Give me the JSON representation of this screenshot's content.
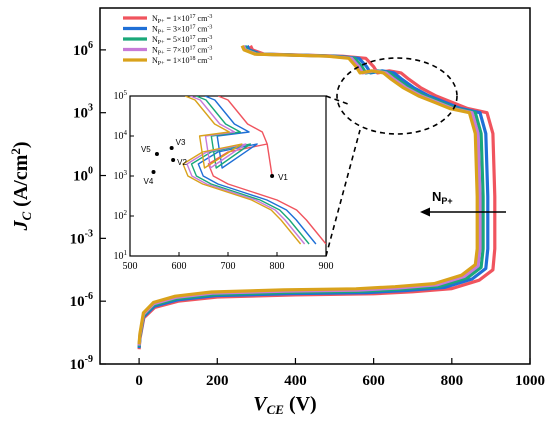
{
  "chart_data": {
    "type": "line",
    "xlabel": "V_CE (V)",
    "ylabel": "J_C (A/cm2)",
    "xlim": [
      -100,
      1000
    ],
    "ylim_log10": [
      -9,
      8
    ],
    "x_ticks": [
      "0",
      "200",
      "400",
      "600",
      "800",
      "1000"
    ],
    "y_ticks": [
      {
        "base": "10",
        "exp": "6",
        "v": 6
      },
      {
        "base": "10",
        "exp": "3",
        "v": 3
      },
      {
        "base": "10",
        "exp": "0",
        "v": 0
      },
      {
        "base": "10",
        "exp": "-3",
        "v": -3
      },
      {
        "base": "10",
        "exp": "-6",
        "v": -6
      },
      {
        "base": "10",
        "exp": "-9",
        "v": -9
      }
    ],
    "axis_label_x": {
      "main": "V",
      "sub": "CE",
      "unit": " (V)"
    },
    "axis_label_y": {
      "main": "J",
      "sub": "C",
      "unit": " (A/cm",
      "sup": "2",
      "close": ")"
    },
    "legend_placement": "top-left",
    "series": [
      {
        "name": "N_P+ = 1×10^17 cm^-3",
        "legend_label": {
          "a": "N",
          "b": "P+",
          "c": " = 1×10",
          "d": "17",
          "e": " cm",
          "f": "-3"
        },
        "color": "#f0545e",
        "dx": 0
      },
      {
        "name": "N_P+ = 3×10^17 cm^-3",
        "legend_label": {
          "a": "N",
          "b": "P+",
          "c": " = 3×10",
          "d": "17",
          "e": " cm",
          "f": "-3"
        },
        "color": "#1f6fd6",
        "dx": -18
      },
      {
        "name": "N_P+ = 5×10^17 cm^-3",
        "legend_label": {
          "a": "N",
          "b": "P+",
          "c": " = 5×10",
          "d": "17",
          "e": " cm",
          "f": "-3"
        },
        "color": "#1aa879",
        "dx": -30
      },
      {
        "name": "N_P+ = 7×10^17 cm^-3",
        "legend_label": {
          "a": "N",
          "b": "P+",
          "c": " = 7×10",
          "d": "17",
          "e": " cm",
          "f": "-3"
        },
        "color": "#c77ad8",
        "dx": -38
      },
      {
        "name": "N_P+ = 1×10^18 cm^-3",
        "legend_label": {
          "a": "N",
          "b": "P+",
          "c": " = 1×10",
          "d": "18",
          "e": " cm",
          "f": "-3"
        },
        "color": "#d9a21b",
        "dx": -45
      }
    ],
    "base_curve": [
      [
        0,
        -8.3
      ],
      [
        2,
        -7.8
      ],
      [
        12,
        -6.8
      ],
      [
        40,
        -6.3
      ],
      [
        100,
        -6.0
      ],
      [
        200,
        -5.8
      ],
      [
        400,
        -5.7
      ],
      [
        600,
        -5.65
      ],
      [
        700,
        -5.55
      ],
      [
        800,
        -5.4
      ],
      [
        870,
        -5.0
      ],
      [
        905,
        -4.5
      ],
      [
        910,
        -3.5
      ],
      [
        910,
        -1.0
      ],
      [
        905,
        2.0
      ],
      [
        890,
        3.0
      ],
      [
        840,
        3.2
      ],
      [
        800,
        3.5
      ],
      [
        760,
        3.8
      ],
      [
        720,
        4.2
      ],
      [
        690,
        4.6
      ],
      [
        670,
        4.9
      ],
      [
        640,
        5.0
      ],
      [
        610,
        4.9
      ],
      [
        600,
        5.2
      ],
      [
        580,
        5.6
      ],
      [
        520,
        5.7
      ],
      [
        420,
        5.75
      ],
      [
        320,
        5.8
      ],
      [
        290,
        6.0
      ],
      [
        285,
        6.2
      ]
    ],
    "inset": {
      "xlim": [
        500,
        900
      ],
      "ylim_log10": [
        1,
        5
      ],
      "x_ticks": [
        "500",
        "600",
        "700",
        "800",
        "900"
      ],
      "y_ticks": [
        {
          "base": "10",
          "exp": "1",
          "v": 1
        },
        {
          "base": "10",
          "exp": "2",
          "v": 2
        },
        {
          "base": "10",
          "exp": "3",
          "v": 3
        },
        {
          "base": "10",
          "exp": "4",
          "v": 4
        },
        {
          "base": "10",
          "exp": "5",
          "v": 5
        }
      ],
      "base_curve": [
        [
          900,
          1.3
        ],
        [
          880,
          1.6
        ],
        [
          860,
          1.9
        ],
        [
          840,
          2.15
        ],
        [
          800,
          2.4
        ],
        [
          750,
          2.6
        ],
        [
          700,
          2.8
        ],
        [
          670,
          3.0
        ],
        [
          660,
          3.3
        ],
        [
          700,
          3.6
        ],
        [
          780,
          3.8
        ],
        [
          790,
          3.0
        ],
        [
          780,
          3.8
        ],
        [
          770,
          4.1
        ],
        [
          740,
          4.3
        ],
        [
          720,
          4.6
        ],
        [
          700,
          4.9
        ],
        [
          680,
          5.0
        ]
      ],
      "annotations": [
        {
          "label": "V1",
          "x": 790,
          "y": 3.0
        },
        {
          "label": "V2",
          "x": 588,
          "y": 3.4
        },
        {
          "label": "V3",
          "x": 585,
          "y": 3.7
        },
        {
          "label": "V4",
          "x": 548,
          "y": 3.1
        },
        {
          "label": "V5",
          "x": 555,
          "y": 3.55
        }
      ]
    },
    "arrow_label": {
      "a": "N",
      "b": "P+"
    }
  }
}
